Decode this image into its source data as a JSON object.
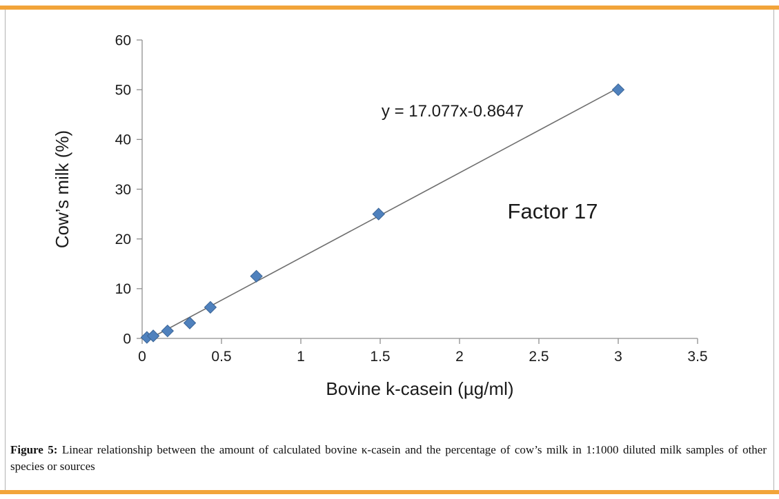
{
  "page": {
    "accent_color": "#F2A43A",
    "frame_border_color": "#b3b3b3",
    "background": "#ffffff"
  },
  "caption": {
    "label": "Figure 5:",
    "text": " Linear relationship between the amount of calculated bovine κ-casein and the percentage of cow’s milk in 1:1000 diluted milk samples of other species or sources"
  },
  "chart_data": {
    "type": "scatter",
    "title": "",
    "xlabel": "Bovine k-casein (µg/ml)",
    "ylabel": "Cow’s milk (%)",
    "xlim": [
      0,
      3.5
    ],
    "ylim": [
      0,
      60
    ],
    "xticks": [
      0,
      0.5,
      1,
      1.5,
      2,
      2.5,
      3,
      3.5
    ],
    "yticks": [
      0,
      10,
      20,
      30,
      40,
      50,
      60
    ],
    "grid": false,
    "legend": "none",
    "marker": "diamond",
    "marker_color": "#4F81BD",
    "marker_edge_color": "#3A6496",
    "line_color": "#6E6E6E",
    "axis_color": "#8f8f8f",
    "points": [
      {
        "x": 0.03,
        "y": 0.2
      },
      {
        "x": 0.07,
        "y": 0.5
      },
      {
        "x": 0.16,
        "y": 1.5
      },
      {
        "x": 0.3,
        "y": 3.1
      },
      {
        "x": 0.43,
        "y": 6.25
      },
      {
        "x": 0.72,
        "y": 12.5
      },
      {
        "x": 1.49,
        "y": 25
      },
      {
        "x": 3.0,
        "y": 50
      }
    ],
    "trendline": {
      "slope": 17.077,
      "intercept": -0.8647,
      "x_start": 0.05,
      "x_end": 3.0
    },
    "equation_label": "y = 17.077x-0.8647",
    "annotation": "Factor 17"
  }
}
